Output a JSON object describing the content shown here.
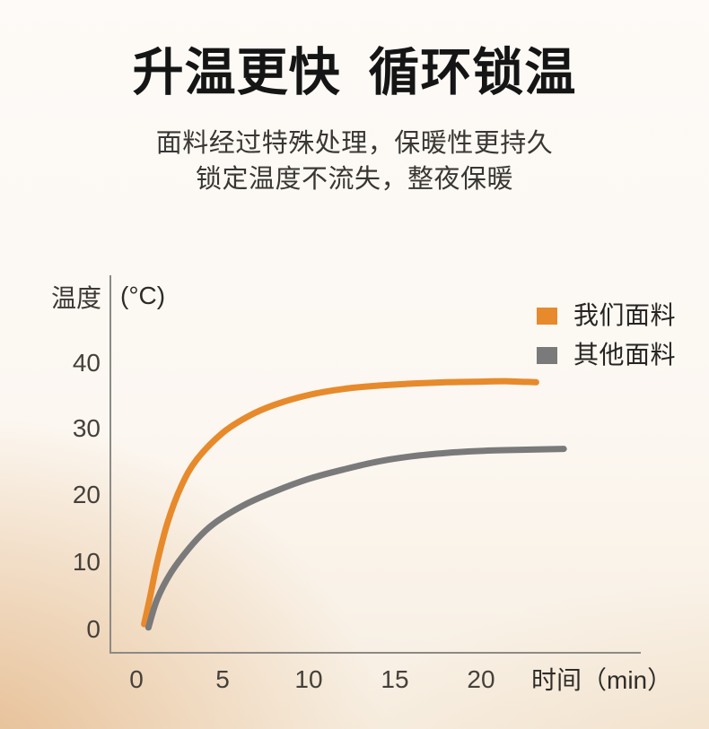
{
  "header": {
    "title": "升温更快 循环锁温",
    "subtitle_line1": "面料经过特殊处理，保暖性更持久",
    "subtitle_line2": "锁定温度不流失，整夜保暖"
  },
  "chart_data": {
    "type": "line",
    "title": "",
    "y_axis_label": "温度",
    "y_axis_unit": "(°C)",
    "x_axis_label": "时间（min）",
    "x_ticks": [
      0,
      5,
      10,
      15,
      20
    ],
    "y_ticks": [
      0,
      10,
      20,
      30,
      40
    ],
    "xlim": [
      0,
      29
    ],
    "ylim": [
      0,
      56
    ],
    "grid": false,
    "legend_position": "top-right",
    "series": [
      {
        "name": "我们面料",
        "color": "#E78A2C",
        "points": [
          [
            0.45,
            0.8
          ],
          [
            0.8,
            5
          ],
          [
            1.2,
            10
          ],
          [
            1.8,
            16
          ],
          [
            2.6,
            21.5
          ],
          [
            3.5,
            25.5
          ],
          [
            5,
            29.5
          ],
          [
            6.5,
            32
          ],
          [
            8,
            33.7
          ],
          [
            10,
            35.2
          ],
          [
            12,
            36.1
          ],
          [
            14,
            36.6
          ],
          [
            16,
            36.9
          ],
          [
            18,
            37.1
          ],
          [
            20,
            37.2
          ],
          [
            21.6,
            37.25
          ],
          [
            23.2,
            37.1
          ]
        ]
      },
      {
        "name": "其他面料",
        "color": "#7A7A7A",
        "points": [
          [
            0.7,
            0.3
          ],
          [
            1.2,
            4.5
          ],
          [
            2,
            8.5
          ],
          [
            3,
            12
          ],
          [
            4,
            14.8
          ],
          [
            5,
            16.8
          ],
          [
            6.5,
            19
          ],
          [
            8,
            20.7
          ],
          [
            10,
            22.6
          ],
          [
            12,
            24
          ],
          [
            14,
            25.2
          ],
          [
            16,
            26
          ],
          [
            18,
            26.5
          ],
          [
            20,
            26.8
          ],
          [
            22,
            26.95
          ],
          [
            24.8,
            27.1
          ]
        ]
      }
    ]
  },
  "colors": {
    "accent_orange": "#E78A2C",
    "line_gray": "#7A7A7A",
    "axis_line": "#8D8A85",
    "text_dark": "#151515",
    "text_body": "#393733",
    "bg_top": "#FDFAF7",
    "bg_peach_corner": "#EBD0B4"
  }
}
